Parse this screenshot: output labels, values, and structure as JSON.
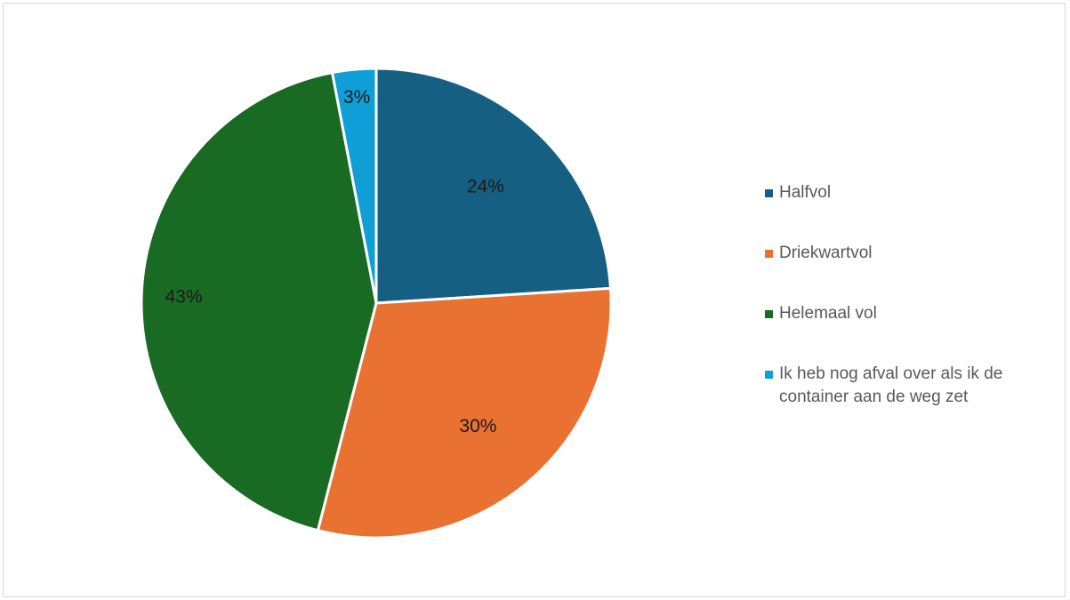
{
  "chart_data": {
    "type": "pie",
    "title": "",
    "categories": [
      "Halfvol",
      "Driekwartvol",
      "Helemaal vol",
      "Ik heb nog afval over als ik de container aan de weg zet"
    ],
    "values": [
      24,
      30,
      43,
      3
    ],
    "labels": [
      "24%",
      "30%",
      "43%",
      "3%"
    ],
    "colors": [
      "#156082",
      "#e97132",
      "#196b24",
      "#0f9ed5"
    ],
    "legend_position": "right",
    "start_angle": "12-o'clock",
    "direction": "clockwise"
  }
}
